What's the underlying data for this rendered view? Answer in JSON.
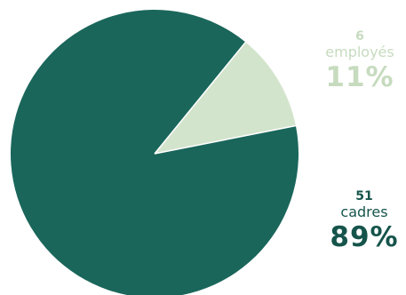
{
  "chart_data": {
    "type": "pie",
    "slices": [
      {
        "label": "cadres",
        "count": "51",
        "percent_label": "89%",
        "value": 89,
        "color": "#1a665b"
      },
      {
        "label": "employés",
        "count": "6",
        "percent_label": "11%",
        "value": 11,
        "color": "#d3e4cd"
      }
    ],
    "title": ""
  }
}
